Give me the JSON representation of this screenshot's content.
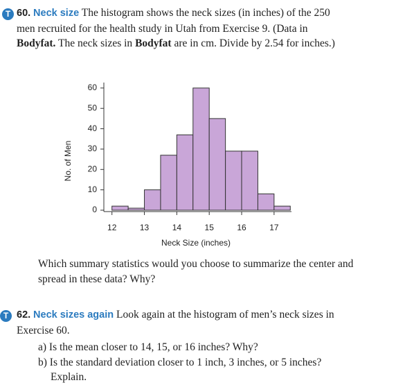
{
  "exercise_60": {
    "number": "60.",
    "title": "Neck size",
    "text": [
      "The histogram shows the neck sizes (in inches) of the 250 men recruited for the health study in Utah from Exercise 9. (Data in ",
      "Bodyfat.",
      " The neck sizes in ",
      "Bodyfat",
      " are in cm. Divide by 2.54 for inches.)"
    ],
    "question": "Which summary statistics would you choose to summarize the center and spread in these data? Why?"
  },
  "chart_data": {
    "type": "histogram",
    "x_label": "Neck Size (inches)",
    "y_label": "No. of Men",
    "bins": [
      12,
      12.5,
      13,
      13.5,
      14,
      14.5,
      15,
      15.5,
      16,
      16.5,
      17,
      17.5
    ],
    "values": [
      2,
      1,
      10,
      27,
      37,
      60,
      45,
      29,
      29,
      8,
      2
    ],
    "color": "#c9a6d8",
    "xlim": [
      11.75,
      17.75
    ],
    "xticks": [
      12,
      13,
      14,
      15,
      16,
      17
    ],
    "ylim": [
      0,
      62
    ],
    "yticks": [
      0,
      10,
      20,
      30,
      40,
      50,
      60
    ]
  },
  "exercise_62": {
    "number": "62.",
    "title": "Neck sizes again",
    "text": "Look again at the histogram of men’s neck sizes in Exercise 60.",
    "items": [
      "a) Is the mean closer to 14, 15, or 16 inches? Why?",
      "b) Is the standard deviation closer to 1 inch, 3 inches, or 5 inches? Explain."
    ]
  }
}
